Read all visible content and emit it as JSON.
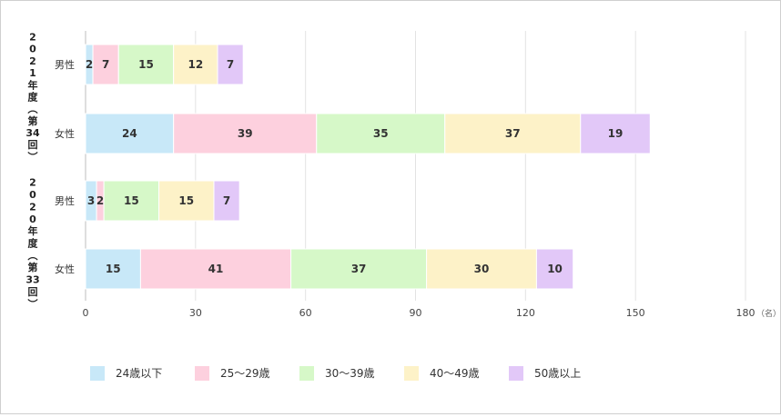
{
  "chart_data": {
    "type": "bar",
    "orientation": "horizontal",
    "stacked": true,
    "groups": [
      {
        "label": "2021年度（第34回）"
      },
      {
        "label": "2020年度（第33回）"
      }
    ],
    "categories": [
      "男性",
      "女性",
      "男性",
      "女性"
    ],
    "category_groups": [
      0,
      0,
      1,
      1
    ],
    "series": [
      {
        "name": "24歳以下",
        "color": "#c8e8f8",
        "values": [
          2,
          24,
          3,
          15
        ]
      },
      {
        "name": "25〜29歳",
        "color": "#fdd0de",
        "values": [
          7,
          39,
          2,
          41
        ]
      },
      {
        "name": "30〜39歳",
        "color": "#d6f8c8",
        "values": [
          15,
          35,
          15,
          37
        ]
      },
      {
        "name": "40〜49歳",
        "color": "#fdf2c8",
        "values": [
          12,
          37,
          15,
          30
        ]
      },
      {
        "name": "50歳以上",
        "color": "#e2c8f8",
        "values": [
          7,
          19,
          7,
          10
        ]
      }
    ],
    "xlim": [
      0,
      180
    ],
    "xticks": [
      "0",
      "30",
      "60",
      "90",
      "120",
      "150",
      "180"
    ],
    "xunit": "（名）",
    "grid": true,
    "legend_position": "bottom"
  }
}
